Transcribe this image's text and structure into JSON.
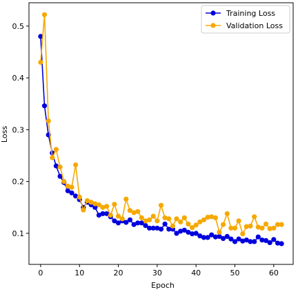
{
  "chart_data": {
    "type": "line",
    "xlabel": "Epoch",
    "ylabel": "Loss",
    "xlim": [
      -3,
      65
    ],
    "ylim": [
      0.04,
      0.545
    ],
    "xticks": [
      0,
      10,
      20,
      30,
      40,
      50,
      60
    ],
    "yticks": [
      0.1,
      0.2,
      0.3,
      0.4,
      0.5
    ],
    "grid": false,
    "legend_position": "top-right",
    "x": [
      0,
      1,
      2,
      3,
      4,
      5,
      6,
      7,
      8,
      9,
      10,
      11,
      12,
      13,
      14,
      15,
      16,
      17,
      18,
      19,
      20,
      21,
      22,
      23,
      24,
      25,
      26,
      27,
      28,
      29,
      30,
      31,
      32,
      33,
      34,
      35,
      36,
      37,
      38,
      39,
      40,
      41,
      42,
      43,
      44,
      45,
      46,
      47,
      48,
      49,
      50,
      51,
      52,
      53,
      54,
      55,
      56,
      57,
      58,
      59,
      60,
      61,
      62
    ],
    "series": [
      {
        "name": "Training Loss",
        "color": "#0000dd",
        "values": [
          0.48,
          0.346,
          0.29,
          0.255,
          0.23,
          0.21,
          0.198,
          0.182,
          0.178,
          0.172,
          0.165,
          0.15,
          0.16,
          0.155,
          0.15,
          0.135,
          0.138,
          0.138,
          0.132,
          0.124,
          0.12,
          0.124,
          0.121,
          0.126,
          0.117,
          0.12,
          0.12,
          0.115,
          0.11,
          0.11,
          0.11,
          0.108,
          0.118,
          0.108,
          0.108,
          0.1,
          0.104,
          0.106,
          0.102,
          0.099,
          0.1,
          0.095,
          0.092,
          0.092,
          0.097,
          0.093,
          0.094,
          0.09,
          0.094,
          0.089,
          0.084,
          0.089,
          0.085,
          0.087,
          0.084,
          0.084,
          0.093,
          0.087,
          0.086,
          0.082,
          0.088,
          0.081,
          0.08
        ]
      },
      {
        "name": "Validation Loss",
        "color": "#f5a800",
        "values": [
          0.43,
          0.522,
          0.317,
          0.246,
          0.262,
          0.228,
          0.2,
          0.191,
          0.189,
          0.232,
          0.17,
          0.145,
          0.163,
          0.16,
          0.157,
          0.155,
          0.15,
          0.152,
          0.135,
          0.156,
          0.133,
          0.128,
          0.166,
          0.144,
          0.14,
          0.142,
          0.13,
          0.124,
          0.126,
          0.133,
          0.124,
          0.154,
          0.13,
          0.128,
          0.114,
          0.128,
          0.122,
          0.13,
          0.118,
          0.111,
          0.116,
          0.122,
          0.126,
          0.131,
          0.132,
          0.13,
          0.102,
          0.117,
          0.138,
          0.11,
          0.11,
          0.124,
          0.099,
          0.113,
          0.114,
          0.132,
          0.112,
          0.11,
          0.118,
          0.109,
          0.11,
          0.117,
          0.117
        ]
      }
    ]
  }
}
